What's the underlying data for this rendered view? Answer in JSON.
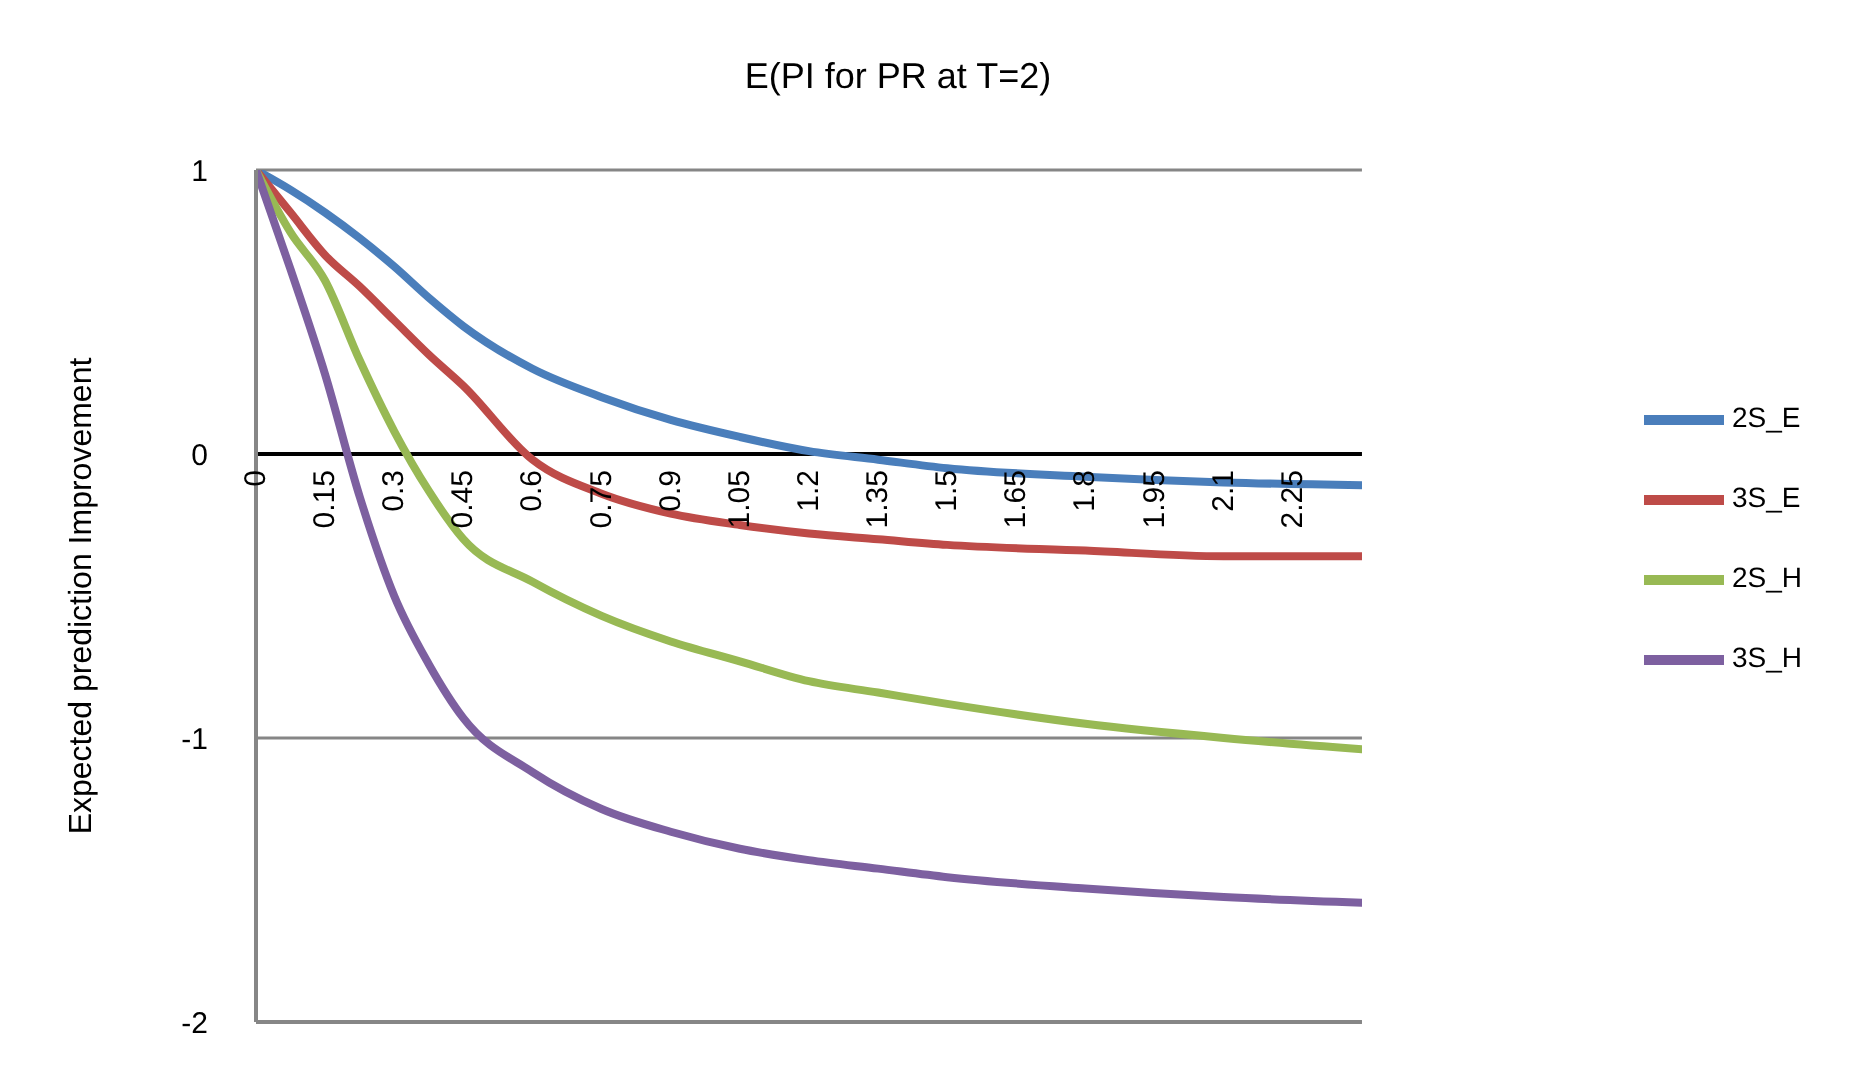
{
  "chart_data": {
    "type": "line",
    "title": "E(PI for PR at T=2)",
    "ylabel": "Expected prediction Improvement",
    "x": [
      0,
      0.075,
      0.15,
      0.225,
      0.3,
      0.375,
      0.45,
      0.6,
      0.75,
      0.9,
      1.05,
      1.2,
      1.35,
      1.5,
      1.8,
      2.1,
      2.4
    ],
    "series": [
      {
        "name": "2S_E",
        "color": "#4a7ebb",
        "values": [
          1,
          0.93,
          0.85,
          0.76,
          0.66,
          0.55,
          0.45,
          0.3,
          0.2,
          0.12,
          0.06,
          0.01,
          -0.02,
          -0.05,
          -0.08,
          -0.1,
          -0.11
        ]
      },
      {
        "name": "3S_E",
        "color": "#be4b48",
        "values": [
          1,
          0.85,
          0.7,
          0.59,
          0.47,
          0.35,
          0.24,
          -0.02,
          -0.14,
          -0.21,
          -0.25,
          -0.28,
          -0.3,
          -0.32,
          -0.34,
          -0.36,
          -0.36
        ]
      },
      {
        "name": "2S_H",
        "color": "#98b954",
        "values": [
          1,
          0.78,
          0.61,
          0.33,
          0.08,
          -0.13,
          -0.3,
          -0.45,
          -0.57,
          -0.66,
          -0.73,
          -0.8,
          -0.84,
          -0.88,
          -0.95,
          -1.0,
          -1.04
        ]
      },
      {
        "name": "3S_H",
        "color": "#7d60a0",
        "values": [
          1,
          0.65,
          0.28,
          -0.15,
          -0.5,
          -0.74,
          -0.93,
          -1.12,
          -1.25,
          -1.33,
          -1.39,
          -1.43,
          -1.46,
          -1.49,
          -1.53,
          -1.56,
          -1.58
        ]
      }
    ],
    "xlim": [
      0,
      2.4
    ],
    "xticks": [
      0,
      0.15,
      0.3,
      0.45,
      0.6,
      0.75,
      0.9,
      1.05,
      1.2,
      1.35,
      1.5,
      1.65,
      1.8,
      1.95,
      2.1,
      2.25
    ],
    "ylim": [
      -2,
      1
    ],
    "yticks": [
      -2,
      -1,
      0,
      1
    ],
    "grid": "y",
    "legend": "right",
    "marker": "none",
    "line_style": "solid"
  }
}
